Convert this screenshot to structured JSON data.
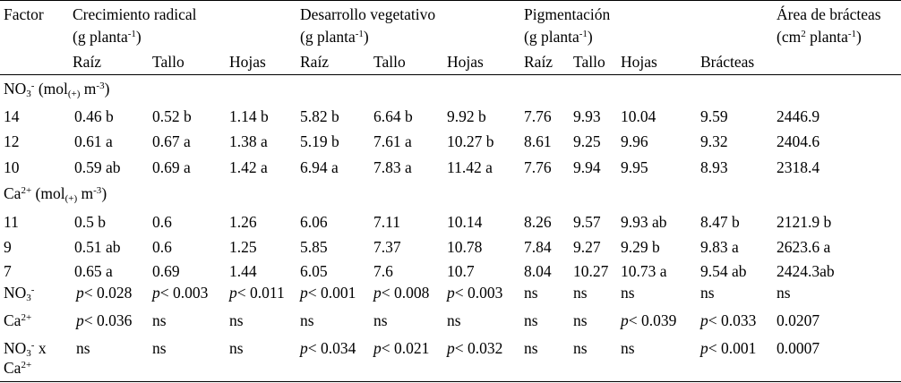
{
  "header": {
    "factor": "Factor",
    "groups": {
      "crecimiento": {
        "title": "Crecimiento radical",
        "unit_prefix": "(g planta",
        "unit_sup": "-1",
        "unit_suffix": ")"
      },
      "desarrollo": {
        "title": "Desarrollo vegetativo",
        "unit_prefix": "(g planta",
        "unit_sup": "-1",
        "unit_suffix": ")"
      },
      "pigmentacion": {
        "title": "Pigmentación",
        "unit_prefix": "(g planta",
        "unit_sup": "-1",
        "unit_suffix": ")"
      },
      "area": {
        "title": "Área de brácteas",
        "unit_prefix": "(cm",
        "unit_sup1": "2",
        "unit_mid": " planta",
        "unit_sup2": "-1",
        "unit_suffix": ")"
      }
    },
    "subheaders": [
      "Raíz",
      "Tallo",
      "Hojas",
      "Raíz",
      "Tallo",
      "Hojas",
      "Raíz",
      "Tallo",
      "Hojas",
      "Brácteas"
    ]
  },
  "sections": {
    "no3": {
      "base": "NO",
      "sub1": "3",
      "sup": "-",
      "unit_open": " (mol",
      "unit_sub": "(+)",
      "unit_mid": " m",
      "unit_sup": "-3",
      "unit_close": ")"
    },
    "ca": {
      "base": "Ca",
      "sup": "2+",
      "unit_open": " (mol",
      "unit_sub": "(+)",
      "unit_mid": " m",
      "unit_sup": "-3",
      "unit_close": ")"
    }
  },
  "rows": [
    {
      "factor": "14",
      "cells": [
        "0.46 b",
        "0.52 b",
        "1.14 b",
        "5.82 b",
        "6.64 b",
        "9.92 b",
        "7.76",
        "9.93",
        "10.04",
        "9.59",
        "2446.9"
      ]
    },
    {
      "factor": "12",
      "cells": [
        "0.61 a",
        "0.67 a",
        "1.38 a",
        "5.19 b",
        "7.61 a",
        "10.27 b",
        "8.61",
        "9.25",
        "9.96",
        "9.32",
        "2404.6"
      ]
    },
    {
      "factor": "10",
      "cells": [
        "0.59 ab",
        "0.69 a",
        "1.42 a",
        "6.94 a",
        "7.83 a",
        "11.42 a",
        "7.76",
        "9.94",
        "9.95",
        "8.93",
        "2318.4"
      ]
    },
    {
      "factor": "11",
      "cells": [
        "0.5 b",
        "0.6",
        "1.26",
        "6.06",
        "7.11",
        "10.14",
        "8.26",
        "9.57",
        "9.93 ab",
        "8.47 b",
        "2121.9 b"
      ]
    },
    {
      "factor": "9",
      "cells": [
        "0.51 ab",
        "0.6",
        "1.25",
        "5.85",
        "7.37",
        "10.78",
        "7.84",
        "9.27",
        "9.29 b",
        "9.83 a",
        "2623.6 a"
      ]
    },
    {
      "factor": "7",
      "cells": [
        "0.65 a",
        "0.69",
        "1.44",
        "6.05",
        "7.6",
        "10.7",
        "8.04",
        "10.27",
        "10.73 a",
        "9.54 ab",
        "2424.3ab"
      ]
    }
  ],
  "stats": [
    {
      "cells": [
        "< 0.028",
        "< 0.003",
        "< 0.011",
        "< 0.001",
        "< 0.008",
        "< 0.003",
        "ns",
        "ns",
        "ns",
        "ns",
        "ns"
      ]
    },
    {
      "cells": [
        "< 0.036",
        "ns",
        "ns",
        "ns",
        "ns",
        "ns",
        "ns",
        "ns",
        "< 0.039",
        "< 0.033",
        "0.0207"
      ]
    },
    {
      "cells": [
        "ns",
        "ns",
        "ns",
        "< 0.034",
        "< 0.021",
        "< 0.032",
        "ns",
        "ns",
        "ns",
        "< 0.001",
        "0.0007"
      ]
    }
  ],
  "stat_labels": {
    "no3": {
      "base": "NO",
      "sub": "3",
      "sup": "-"
    },
    "ca": {
      "base": "Ca",
      "sup": "2+"
    },
    "interaction": {
      "base": "NO",
      "sub": "3",
      "sup": "-",
      "suffix": " x",
      "line2_base": "Ca",
      "line2_sup": "2+"
    }
  },
  "p_symbol": "p"
}
